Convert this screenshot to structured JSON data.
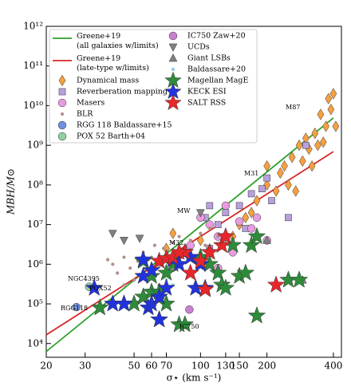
{
  "chart_data": {
    "type": "scatter",
    "xlabel": "σ⋆ (km s⁻¹)",
    "ylabel": "MBH/M⊙",
    "xscale": "log",
    "yscale": "log",
    "xlim": [
      20,
      435
    ],
    "ylim": [
      4500,
      1000000000000
    ],
    "xticks": [
      20,
      30,
      50,
      60,
      70,
      100,
      130,
      150,
      200,
      400
    ],
    "yticks": [
      {
        "value": 10000,
        "label": "10⁴"
      },
      {
        "value": 100000,
        "label": "10⁵"
      },
      {
        "value": 1000000,
        "label": "10⁶"
      },
      {
        "value": 10000000,
        "label": "10⁷"
      },
      {
        "value": 100000000,
        "label": "10⁸"
      },
      {
        "value": 1000000000,
        "label": "10⁹"
      },
      {
        "value": 10000000000,
        "label": "10¹⁰"
      },
      {
        "value": 100000000000,
        "label": "10¹¹"
      },
      {
        "value": 1000000000000,
        "label": "10¹²"
      }
    ],
    "legend": "upper left",
    "annotations": [
      "M87",
      "M31",
      "MW",
      "M32",
      "NGC4395",
      "POX52",
      "RGG118",
      "IC750"
    ],
    "series": [
      {
        "name": "Greene+19 (all galaxies w/limits)",
        "color": "#2ca02c",
        "marker": "line",
        "x": [
          20,
          400
        ],
        "values": [
          6300,
          4900000000
        ]
      },
      {
        "name": "Greene+19 (late-type w/limits)",
        "color": "#d62728",
        "marker": "line",
        "x": [
          20,
          400
        ],
        "values": [
          16600,
          690000000
        ]
      },
      {
        "name": "Dynamical mass",
        "color": "#f5a040",
        "marker": "diamond",
        "x": [
          400,
          380,
          390,
          350,
          370,
          330,
          300,
          280,
          310,
          260,
          240,
          230,
          200,
          220,
          180,
          170,
          160,
          250,
          290,
          340,
          200,
          150,
          140,
          75,
          100,
          70,
          270,
          320,
          360,
          410
        ],
        "values": [
          20000000000,
          15000000000,
          8000000000,
          6000000000,
          3000000000,
          2000000000,
          1500000000,
          1000000000,
          800000000,
          500000000,
          300000000,
          200000000,
          100000000,
          70000000,
          40000000,
          20000000,
          15000000,
          100000000,
          400000000,
          1000000000,
          300000000,
          10000000,
          5000000,
          6000000,
          4000000,
          2500000,
          70000000,
          300000000,
          1200000000,
          3000000000
        ]
      },
      {
        "name": "Reverberation mapping",
        "color": "#b8a0dc",
        "marker": "square",
        "x": [
          110,
          105,
          120,
          130,
          150,
          170,
          190,
          210,
          250,
          300,
          130,
          160,
          110,
          200
        ],
        "values": [
          30000000,
          15000000,
          10000000,
          20000000,
          30000000,
          60000000,
          80000000,
          40000000,
          15000000,
          1000000000,
          5000000,
          8000000,
          2500000,
          150000000
        ]
      },
      {
        "name": "Masers",
        "color": "#e89be0",
        "marker": "circle",
        "x": [
          110,
          130,
          120,
          100,
          150,
          170,
          180,
          140,
          120,
          200,
          90
        ],
        "values": [
          10000000,
          30000000,
          5000000,
          15000000,
          12000000,
          8000000,
          15000000,
          2000000,
          800000,
          4000000,
          3000000
        ]
      },
      {
        "name": "BLR",
        "color": "#b0908a",
        "marker": "dot",
        "x": [
          40,
          42,
          45,
          48,
          50,
          52,
          55,
          58,
          60,
          62,
          65,
          68,
          70,
          72,
          75,
          78,
          80,
          85,
          90,
          95,
          100,
          105,
          110,
          120,
          130,
          45,
          55,
          65,
          75,
          38
        ],
        "values": [
          1000000,
          600000,
          1500000,
          800000,
          400000,
          1200000,
          2000000,
          700000,
          1500000,
          3000000,
          900000,
          2500000,
          1800000,
          600000,
          3500000,
          1200000,
          5000000,
          2500000,
          4000000,
          1500000,
          6000000,
          3000000,
          8000000,
          5000000,
          4000000,
          300000,
          500000,
          300000,
          700000,
          1300000
        ]
      },
      {
        "name": "RGG 118 Baldassare+15",
        "color": "#7090e0",
        "marker": "circle",
        "x": [
          27.4
        ],
        "values": [
          83000
        ]
      },
      {
        "name": "POX 52 Barth+04",
        "color": "#90d0a0",
        "marker": "circle",
        "x": [
          31.3
        ],
        "values": [
          270000
        ]
      },
      {
        "name": "IC750 Zaw+20",
        "color": "#c880d0",
        "marker": "circle",
        "x": [
          89
        ],
        "values": [
          72000
        ]
      },
      {
        "name": "UCDs",
        "color": "#808080",
        "marker": "tri-down",
        "x": [
          40,
          45,
          53,
          100
        ],
        "values": [
          6000000,
          4000000,
          4500000,
          20000000
        ]
      },
      {
        "name": "Giant LSBs",
        "color": "#808080",
        "marker": "tri-up",
        "x": [
          200,
          290,
          110
        ],
        "values": [
          4000000,
          400000,
          2500000
        ]
      },
      {
        "name": "Baldassare+20",
        "color": "#90c8e8",
        "marker": "dot",
        "x": [
          55,
          60,
          65,
          75,
          80,
          100,
          90,
          70
        ],
        "values": [
          200000,
          500000,
          1000000,
          300000,
          1500000,
          2000000,
          800000,
          400000
        ]
      },
      {
        "name": "Magellan MagE",
        "color": "#2e8b3a",
        "marker": "star",
        "x": [
          35,
          45,
          50,
          55,
          60,
          65,
          65,
          70,
          80,
          85,
          120,
          125,
          130,
          150,
          180,
          170,
          180,
          250,
          280,
          60,
          65,
          55,
          75,
          100,
          70,
          140,
          160,
          110
        ],
        "values": [
          80000,
          100000,
          100000,
          150000,
          200000,
          150000,
          40000,
          100000,
          30000,
          30000,
          600000,
          300000,
          250000,
          500000,
          50000,
          3000000,
          5000000,
          400000,
          400000,
          500000,
          200000,
          1200000,
          1000000,
          1500000,
          600000,
          3000000,
          600000,
          1000000
        ]
      },
      {
        "name": "KECK ESI",
        "color": "#2233dd",
        "marker": "star",
        "x": [
          33,
          40,
          45,
          55,
          58,
          60,
          65,
          65,
          70,
          80,
          85,
          90,
          95,
          100,
          105,
          55,
          60,
          75
        ],
        "values": [
          250000,
          100000,
          100000,
          500000,
          80000,
          100000,
          40000,
          150000,
          250000,
          1000000,
          2000000,
          1500000,
          250000,
          1000000,
          250000,
          1300000,
          700000,
          1300000
        ]
      },
      {
        "name": "SALT RSS",
        "color": "#e8262a",
        "marker": "star",
        "x": [
          65,
          70,
          75,
          85,
          90,
          100,
          105,
          110,
          125,
          130,
          220,
          80
        ],
        "values": [
          1200000,
          1400000,
          1500000,
          2000000,
          600000,
          1200000,
          230000,
          2000000,
          3000000,
          5000000,
          300000,
          2000000
        ]
      }
    ]
  }
}
